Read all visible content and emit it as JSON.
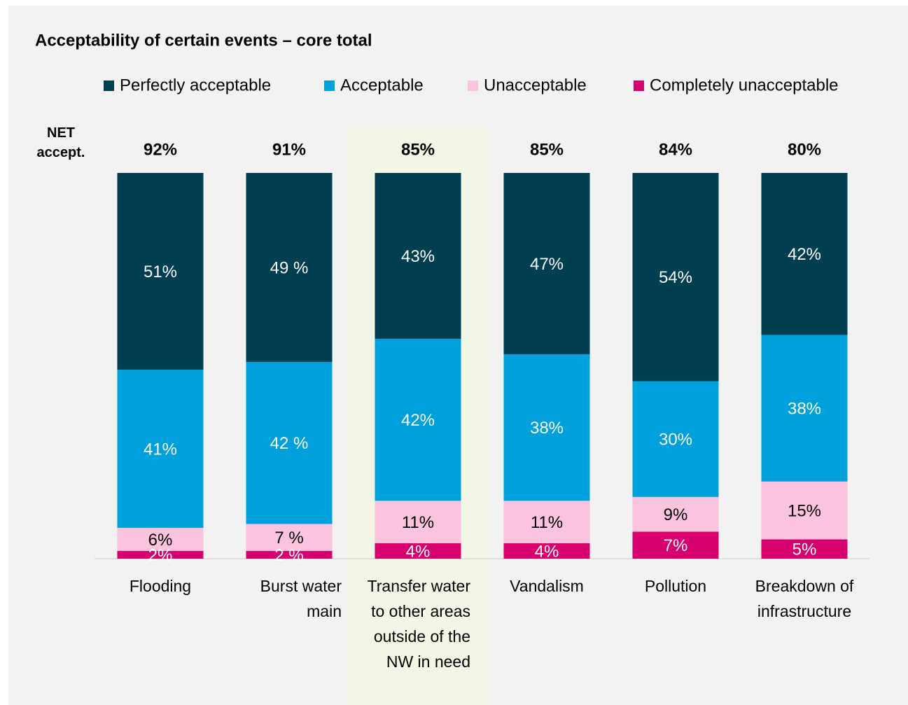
{
  "chart_data": {
    "type": "stacked_bar",
    "title": "Acceptability of certain events – core total",
    "categories": [
      "Flooding",
      "Burst water main",
      "Transfer water to other areas outside of the NW in need",
      "Vandalism",
      "Pollution",
      "Breakdown of infrastructure"
    ],
    "series": [
      {
        "name": "Perfectly acceptable",
        "color": "#003f52",
        "values": [
          51,
          49,
          43,
          47,
          54,
          42
        ],
        "value_labels": [
          "51%",
          "49 %",
          "43%",
          "47%",
          "54%",
          "42%"
        ]
      },
      {
        "name": "Acceptable",
        "color": "#00a0dc",
        "values": [
          41,
          42,
          42,
          38,
          30,
          38
        ],
        "value_labels": [
          "41%",
          "42 %",
          "42%",
          "38%",
          "30%",
          "38%"
        ]
      },
      {
        "name": "Unacceptable",
        "color": "#fcc3df",
        "values": [
          6,
          7,
          11,
          11,
          9,
          15
        ],
        "value_labels": [
          "6%",
          "7 %",
          "11%",
          "11%",
          "9%",
          "15%"
        ]
      },
      {
        "name": "Completely unacceptable",
        "color": "#d6006f",
        "values": [
          2,
          2,
          4,
          4,
          7,
          5
        ],
        "value_labels": [
          "2%",
          "2 %",
          "4%",
          "4%",
          "7%",
          "5%"
        ]
      }
    ],
    "net": {
      "label": "NET accept.",
      "values": [
        92,
        91,
        85,
        85,
        84,
        80
      ],
      "value_labels": [
        "92%",
        "91%",
        "85%",
        "85%",
        "84%",
        "80%"
      ]
    },
    "ylim": [
      0,
      100
    ],
    "highlight_category": 2,
    "highlight_color": "#f1f6e6",
    "legend": "top"
  }
}
